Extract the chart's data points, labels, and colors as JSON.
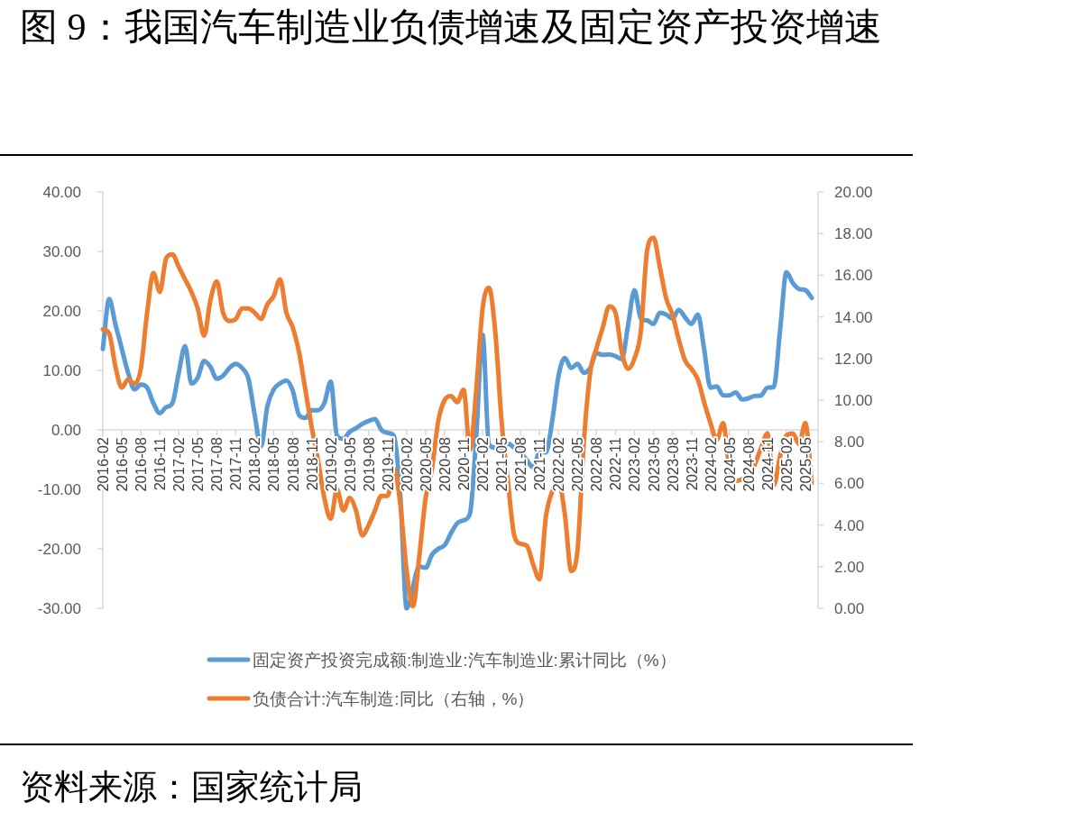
{
  "chart_data": {
    "type": "line",
    "title": "图 9：我国汽车制造业负债增速及固定资产投资增速",
    "annotations": [
      "资料来源：国家统计局"
    ],
    "x": [
      "2016-02",
      "2016-03",
      "2016-04",
      "2016-05",
      "2016-06",
      "2016-07",
      "2016-08",
      "2016-09",
      "2016-10",
      "2016-11",
      "2016-12",
      "2017-01",
      "2017-02",
      "2017-03",
      "2017-04",
      "2017-05",
      "2017-06",
      "2017-07",
      "2017-08",
      "2017-09",
      "2017-10",
      "2017-11",
      "2017-12",
      "2018-01",
      "2018-02",
      "2018-03",
      "2018-04",
      "2018-05",
      "2018-06",
      "2018-07",
      "2018-08",
      "2018-09",
      "2018-10",
      "2018-11",
      "2018-12",
      "2019-01",
      "2019-02",
      "2019-03",
      "2019-04",
      "2019-05",
      "2019-06",
      "2019-07",
      "2019-08",
      "2019-09",
      "2019-10",
      "2019-11",
      "2019-12",
      "2020-01",
      "2020-02",
      "2020-03",
      "2020-04",
      "2020-05",
      "2020-06",
      "2020-07",
      "2020-08",
      "2020-09",
      "2020-10",
      "2020-11",
      "2020-12",
      "2021-01",
      "2021-02",
      "2021-03",
      "2021-04",
      "2021-05",
      "2021-06",
      "2021-07",
      "2021-08",
      "2021-09",
      "2021-10",
      "2021-11",
      "2021-12",
      "2022-01",
      "2022-02",
      "2022-03",
      "2022-04",
      "2022-05",
      "2022-06",
      "2022-07",
      "2022-08",
      "2022-09",
      "2022-10",
      "2022-11",
      "2022-12",
      "2023-01",
      "2023-02",
      "2023-03",
      "2023-04",
      "2023-05",
      "2023-06",
      "2023-07",
      "2023-08",
      "2023-09",
      "2023-10",
      "2023-11",
      "2023-12",
      "2024-01",
      "2024-02",
      "2024-03",
      "2024-04",
      "2024-05",
      "2024-06",
      "2024-07",
      "2024-08",
      "2024-09",
      "2024-10",
      "2024-11",
      "2024-12",
      "2025-01",
      "2025-02",
      "2025-03",
      "2025-04",
      "2025-05",
      "2025-06"
    ],
    "series": [
      {
        "name": "固定资产投资完成额:制造业:汽车制造业:累计同比（%）",
        "color": "#5b9bd5",
        "x": [
          "2016-02",
          "2016-03",
          "2016-04",
          "2016-05",
          "2016-06",
          "2016-07",
          "2016-08",
          "2016-09",
          "2016-10",
          "2016-11",
          "2016-12",
          "2017-01",
          "2017-02",
          "2017-03",
          "2017-04",
          "2017-05",
          "2017-06",
          "2017-07",
          "2017-08",
          "2017-09",
          "2017-10",
          "2017-11",
          "2017-12",
          "2018-01",
          "2018-02",
          "2018-03",
          "2018-04",
          "2018-05",
          "2018-06",
          "2018-07",
          "2018-08",
          "2018-09",
          "2018-10",
          "2018-11",
          "2018-12",
          "2019-01",
          "2019-02",
          "2019-03",
          "2019-04",
          "2019-05",
          "2019-06",
          "2019-07",
          "2019-08",
          "2019-09",
          "2019-10",
          "2019-11",
          "2019-12",
          "2020-01",
          "2020-02",
          "2020-04",
          "2020-05",
          "2020-06",
          "2020-07",
          "2020-08",
          "2020-09",
          "2020-10",
          "2020-11",
          "2020-12",
          "2021-01",
          "2021-02",
          "2021-03",
          "2021-04",
          "2021-05",
          "2021-06",
          "2021-07",
          "2021-08",
          "2021-09",
          "2021-10",
          "2021-11",
          "2021-12",
          "2022-01",
          "2022-02",
          "2022-03",
          "2022-04",
          "2022-05",
          "2022-06",
          "2022-07",
          "2022-08",
          "2022-09",
          "2022-10",
          "2022-11",
          "2022-12",
          "2023-01",
          "2023-02",
          "2023-03",
          "2023-04",
          "2023-05",
          "2023-06",
          "2023-07",
          "2023-08",
          "2023-09",
          "2023-10",
          "2023-11",
          "2023-12",
          "2024-01",
          "2024-02",
          "2024-03",
          "2024-04",
          "2024-05",
          "2024-06",
          "2024-07",
          "2024-08",
          "2024-09",
          "2024-10",
          "2024-11",
          "2024-12",
          "2025-01",
          "2025-02",
          "2025-03",
          "2025-04",
          "2025-05",
          "2025-06"
        ],
        "values": [
          13.6,
          22.0,
          17.7,
          13.6,
          9.6,
          6.8,
          7.6,
          7.1,
          4.5,
          2.8,
          3.8,
          4.5,
          9.6,
          14.1,
          7.8,
          8.8,
          11.6,
          10.6,
          8.6,
          9.1,
          10.4,
          11.1,
          10.4,
          8.6,
          2.5,
          -2.8,
          4.0,
          6.8,
          7.8,
          8.3,
          6.6,
          2.5,
          2.0,
          3.3,
          3.3,
          4.5,
          8.1,
          -1.0,
          -1.5,
          -0.3,
          0.3,
          1.0,
          1.5,
          1.8,
          0.0,
          -0.5,
          -1.0,
          -11.1,
          -30.0,
          -23.0,
          -23.2,
          -21.0,
          -20.0,
          -19.4,
          -17.4,
          -15.7,
          -15.2,
          -14.1,
          -1.0,
          16.0,
          -2.5,
          -3.0,
          -3.3,
          -2.3,
          -3.0,
          -3.8,
          -5.1,
          -6.3,
          -3.8,
          -3.8,
          1.5,
          9.1,
          12.1,
          10.4,
          11.1,
          9.6,
          10.4,
          12.9,
          12.6,
          12.7,
          12.4,
          11.9,
          17.7,
          23.5,
          18.7,
          18.4,
          17.8,
          19.7,
          19.4,
          18.7,
          20.2,
          18.9,
          17.8,
          19.4,
          13.6,
          7.1,
          7.3,
          5.8,
          5.8,
          6.3,
          5.1,
          5.3,
          5.7,
          5.8,
          7.1,
          7.2,
          16.7,
          26.5,
          24.7,
          23.7,
          23.5,
          22.2
        ]
      },
      {
        "name": "负债合计:汽车制造:同比（右轴，%）",
        "color": "#ed7d31",
        "axis": "y2",
        "values": [
          13.4,
          13.2,
          11.6,
          10.6,
          11.0,
          10.8,
          11.5,
          14.2,
          16.1,
          15.2,
          16.8,
          17.0,
          16.4,
          15.8,
          15.2,
          14.4,
          13.1,
          14.8,
          15.7,
          14.2,
          13.8,
          13.9,
          14.4,
          14.4,
          14.2,
          13.9,
          14.6,
          15.0,
          15.8,
          14.2,
          13.5,
          12.3,
          10.5,
          8.7,
          7.1,
          5.3,
          4.3,
          5.7,
          4.7,
          5.3,
          4.7,
          3.5,
          4.0,
          4.7,
          5.4,
          5.4,
          6.7,
          5.0,
          1.8,
          0.1,
          2.5,
          5.3,
          6.7,
          9.0,
          10.0,
          10.2,
          9.9,
          10.5,
          7.6,
          10.5,
          14.4,
          15.4,
          13.3,
          9.0,
          6.1,
          3.5,
          3.1,
          3.0,
          2.1,
          1.4,
          4.4,
          5.6,
          6.1,
          4.5,
          1.8,
          2.8,
          8.0,
          11.3,
          12.5,
          13.5,
          14.5,
          14.2,
          12.3,
          11.5,
          12.0,
          13.3,
          17.2,
          17.8,
          16.4,
          14.9,
          14.1,
          12.9,
          11.9,
          11.5,
          11.0,
          9.9,
          8.9,
          8.1,
          8.9,
          6.7,
          6.1,
          6.2,
          6.3,
          6.9,
          7.7,
          8.4,
          5.9,
          7.3,
          8.3,
          8.4,
          7.9,
          8.9,
          6.0
        ]
      }
    ],
    "xlim": [
      "2016-02",
      "2025-07"
    ],
    "xticks": [
      "2016-02",
      "2016-05",
      "2016-08",
      "2016-11",
      "2017-02",
      "2017-05",
      "2017-08",
      "2017-11",
      "2018-02",
      "2018-05",
      "2018-08",
      "2018-11",
      "2019-02",
      "2019-05",
      "2019-08",
      "2019-11",
      "2020-02",
      "2020-05",
      "2020-08",
      "2020-11",
      "2021-02",
      "2021-05",
      "2021-08",
      "2021-11",
      "2022-02",
      "2022-05",
      "2022-08",
      "2022-11",
      "2023-02",
      "2023-05",
      "2023-08",
      "2023-11",
      "2024-02",
      "2024-05",
      "2024-08",
      "2024-11",
      "2025-02",
      "2025-05"
    ],
    "ylim": [
      -30,
      40
    ],
    "yticks": [
      {
        "value": -30,
        "label": "-30.00"
      },
      {
        "value": -20,
        "label": "-20.00"
      },
      {
        "value": -10,
        "label": "-10.00"
      },
      {
        "value": 0,
        "label": "0.00"
      },
      {
        "value": 10,
        "label": "10.00"
      },
      {
        "value": 20,
        "label": "20.00"
      },
      {
        "value": 30,
        "label": "30.00"
      },
      {
        "value": 40,
        "label": "40.00"
      }
    ],
    "y2lim": [
      0,
      20
    ],
    "y2ticks": [
      {
        "value": 0,
        "label": "0.00"
      },
      {
        "value": 2,
        "label": "2.00"
      },
      {
        "value": 4,
        "label": "4.00"
      },
      {
        "value": 6,
        "label": "6.00"
      },
      {
        "value": 8,
        "label": "8.00"
      },
      {
        "value": 10,
        "label": "10.00"
      },
      {
        "value": 12,
        "label": "12.00"
      },
      {
        "value": 14,
        "label": "14.00"
      },
      {
        "value": 16,
        "label": "16.00"
      },
      {
        "value": 18,
        "label": "18.00"
      },
      {
        "value": 20,
        "label": "20.00"
      }
    ],
    "legend": "bottom"
  }
}
